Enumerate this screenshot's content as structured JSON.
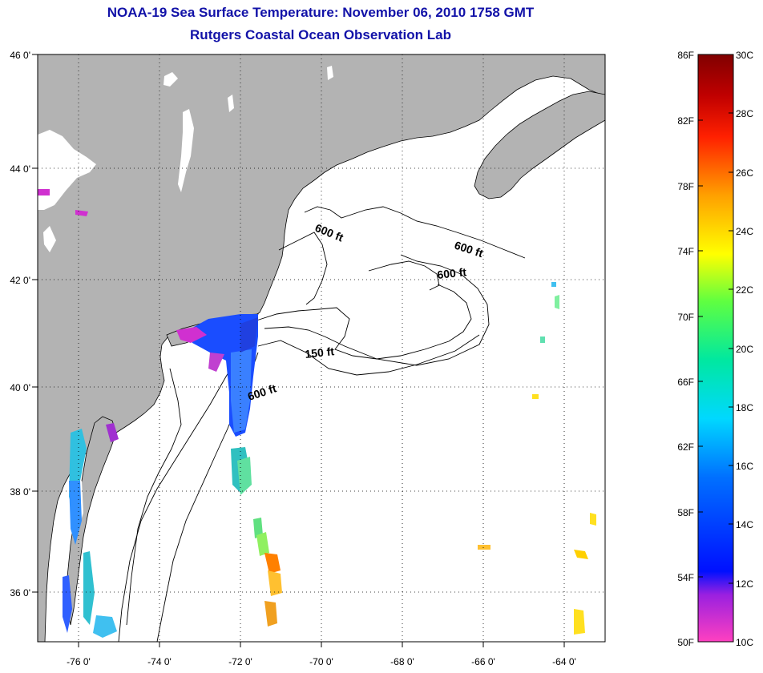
{
  "title": "NOAA-19 Sea Surface Temperature:  November 06, 2010 1758 GMT",
  "subtitle": "Rutgers Coastal Ocean Observation Lab",
  "map": {
    "lon_range": [
      -77.0,
      -63.0
    ],
    "lat_range": [
      35.0,
      46.0
    ],
    "lat_ticks": [
      "46 0'",
      "44 0'",
      "42 0'",
      "40 0'",
      "38 0'",
      "36 0'"
    ],
    "lon_ticks": [
      "-76 0'",
      "-74 0'",
      "-72 0'",
      "-70 0'",
      "-68 0'",
      "-66 0'",
      "-64 0'"
    ],
    "grid": "dotted",
    "land_color": "#b3b3b3",
    "water_color": "#ffffff",
    "contour_labels": [
      "600 ft",
      "600 ft",
      "600 ft",
      "150 ft",
      "600 ft"
    ]
  },
  "colorbar": {
    "f_labels": [
      "86F",
      "82F",
      "78F",
      "74F",
      "70F",
      "66F",
      "62F",
      "58F",
      "54F",
      "50F"
    ],
    "c_labels": [
      "30C",
      "28C",
      "26C",
      "24C",
      "22C",
      "20C",
      "18C",
      "16C",
      "14C",
      "12C",
      "10C"
    ],
    "colors": [
      "#ff40c0",
      "#9a20e0",
      "#0010ff",
      "#0070ff",
      "#00d8ff",
      "#00e8a0",
      "#60ff40",
      "#ffff00",
      "#ffa000",
      "#ff2000",
      "#c00000",
      "#800000"
    ]
  }
}
